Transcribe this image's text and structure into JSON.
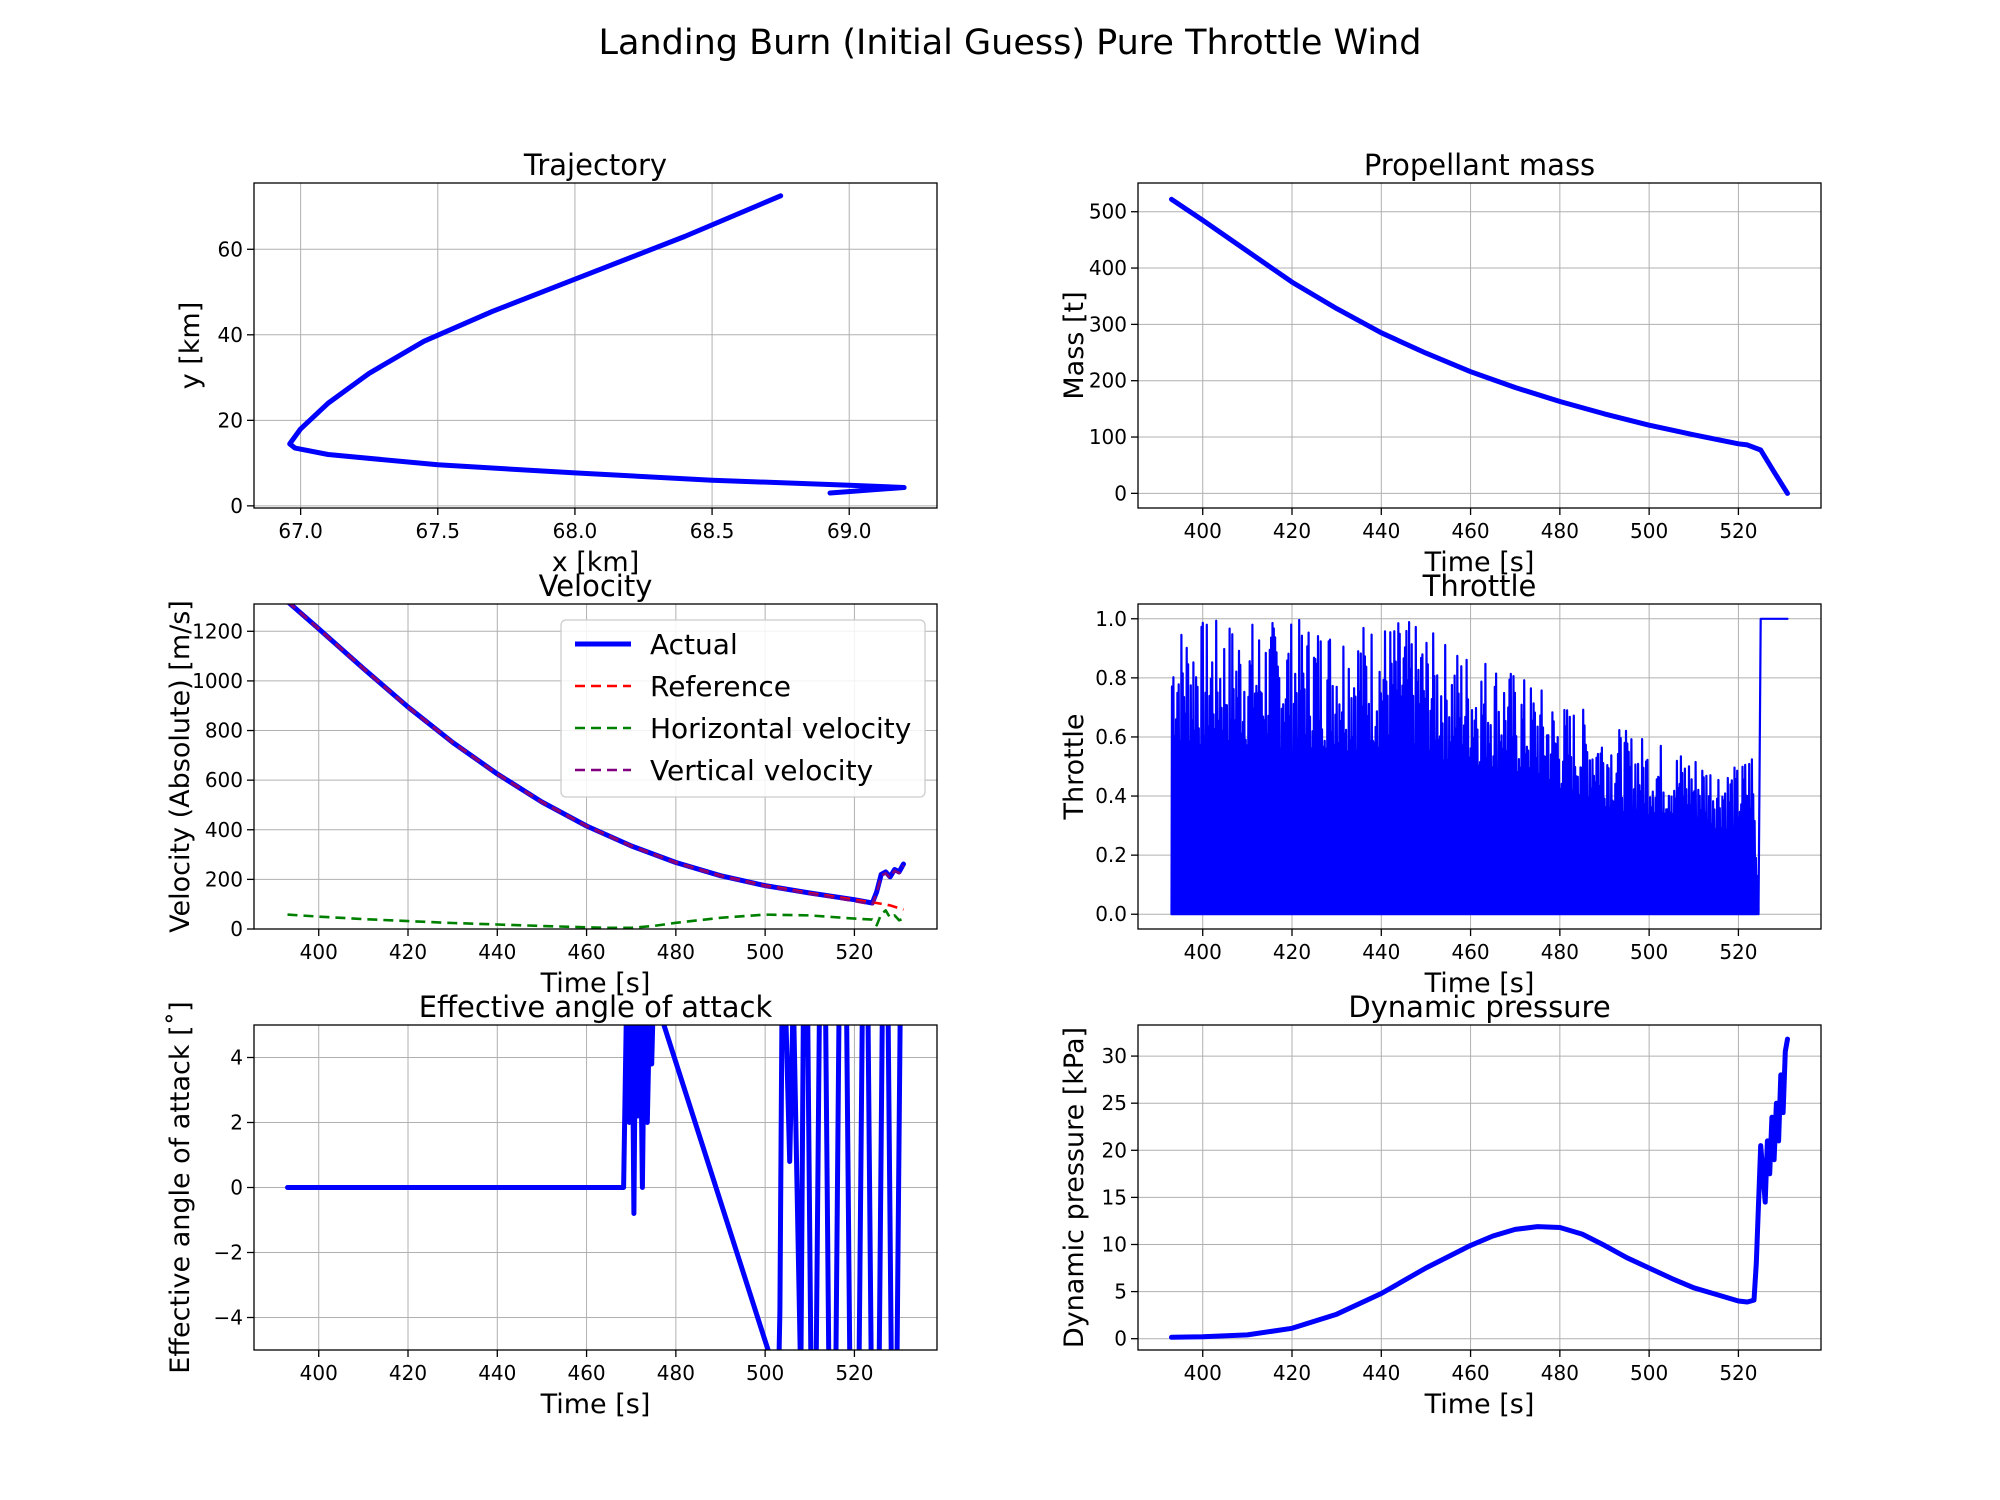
{
  "suptitle": "Landing Burn (Initial Guess) Pure Throttle Wind",
  "colors": {
    "actual": "#0000ff",
    "reference": "#ff0000",
    "horizontal": "#008000",
    "vertical": "#800080",
    "grid": "#b0b0b0"
  },
  "chart_data": [
    {
      "id": "trajectory",
      "type": "line",
      "title": "Trajectory",
      "xlabel": "x [km]",
      "ylabel": "y [km]",
      "xlim": [
        66.83,
        69.32
      ],
      "ylim": [
        -0.5,
        75.5
      ],
      "xticks": [
        67.0,
        67.5,
        68.0,
        68.5,
        69.0
      ],
      "xtick_labels": [
        "67.0",
        "67.5",
        "68.0",
        "68.5",
        "69.0"
      ],
      "yticks": [
        0,
        20,
        40,
        60
      ],
      "ytick_labels": [
        "0",
        "20",
        "40",
        "60"
      ],
      "grid": true,
      "series": [
        {
          "name": "Actual",
          "color": "#0000ff",
          "x": [
            68.75,
            68.4,
            68.0,
            67.7,
            67.45,
            67.25,
            67.1,
            67.0,
            66.96,
            66.98,
            67.1,
            67.5,
            68.0,
            68.5,
            69.0,
            69.2,
            68.93
          ],
          "y": [
            72.5,
            63,
            53,
            45.5,
            38.5,
            31,
            24,
            18,
            14.5,
            13.5,
            12,
            9.6,
            7.7,
            6.0,
            4.8,
            4.3,
            3.0
          ]
        }
      ]
    },
    {
      "id": "propellant_mass",
      "type": "line",
      "title": "Propellant mass",
      "xlabel": "Time [s]",
      "ylabel": "Mass [t]",
      "xlim": [
        385.5,
        538.5
      ],
      "ylim": [
        -26,
        551
      ],
      "xticks": [
        400,
        420,
        440,
        460,
        480,
        500,
        520
      ],
      "xtick_labels": [
        "400",
        "420",
        "440",
        "460",
        "480",
        "500",
        "520"
      ],
      "yticks": [
        0,
        100,
        200,
        300,
        400,
        500
      ],
      "ytick_labels": [
        "0",
        "100",
        "200",
        "300",
        "400",
        "500"
      ],
      "grid": true,
      "series": [
        {
          "name": "Actual",
          "color": "#0000ff",
          "x": [
            393,
            400,
            410,
            420,
            430,
            440,
            450,
            460,
            470,
            480,
            490,
            500,
            510,
            520,
            522,
            525,
            528,
            531
          ],
          "y": [
            522,
            485,
            430,
            375,
            328,
            285,
            249,
            216,
            188,
            163,
            141,
            121,
            104,
            88,
            86,
            77,
            38,
            0
          ]
        }
      ]
    },
    {
      "id": "velocity",
      "type": "line",
      "title": "Velocity",
      "xlabel": "Time [s]",
      "ylabel": "Velocity (Absolute) [m/s]",
      "xlim": [
        385.5,
        538.5
      ],
      "ylim": [
        0,
        1310
      ],
      "xticks": [
        400,
        420,
        440,
        460,
        480,
        500,
        520
      ],
      "xtick_labels": [
        "400",
        "420",
        "440",
        "460",
        "480",
        "500",
        "520"
      ],
      "yticks": [
        0,
        200,
        400,
        600,
        800,
        1000,
        1200
      ],
      "ytick_labels": [
        "0",
        "200",
        "400",
        "600",
        "800",
        "1000",
        "1200"
      ],
      "grid": true,
      "legend": "top-right",
      "series": [
        {
          "name": "Actual",
          "color": "#0000ff",
          "style": "solid",
          "x": [
            393,
            400,
            410,
            420,
            430,
            440,
            450,
            460,
            470,
            480,
            490,
            500,
            510,
            520,
            524,
            525,
            526,
            527,
            528,
            529,
            530,
            531
          ],
          "y": [
            1320,
            1210,
            1050,
            895,
            752,
            625,
            512,
            415,
            335,
            268,
            215,
            175,
            145,
            118,
            105,
            150,
            220,
            230,
            210,
            240,
            230,
            262
          ]
        },
        {
          "name": "Reference",
          "color": "#ff0000",
          "style": "dashed",
          "x": [
            393,
            400,
            410,
            420,
            430,
            440,
            450,
            460,
            470,
            480,
            490,
            500,
            510,
            520,
            525,
            528,
            531
          ],
          "y": [
            1320,
            1210,
            1050,
            895,
            752,
            625,
            512,
            415,
            335,
            268,
            215,
            175,
            145,
            118,
            105,
            95,
            78
          ]
        },
        {
          "name": "Horizontal velocity",
          "color": "#008000",
          "style": "dashed",
          "x": [
            393,
            400,
            410,
            420,
            430,
            440,
            450,
            460,
            465,
            470,
            475,
            480,
            490,
            500,
            510,
            520,
            524,
            525,
            526,
            527,
            528,
            529,
            530,
            531
          ],
          "y": [
            58,
            50,
            40,
            32,
            24,
            18,
            12,
            7,
            5,
            5,
            12,
            25,
            45,
            58,
            55,
            42,
            38,
            15,
            60,
            75,
            45,
            55,
            35,
            42
          ]
        },
        {
          "name": "Vertical velocity",
          "color": "#800080",
          "style": "dashed",
          "x": [
            393,
            400,
            410,
            420,
            430,
            440,
            450,
            460,
            470,
            480,
            490,
            500,
            510,
            520,
            524,
            525,
            526,
            527,
            528,
            529,
            530,
            531
          ],
          "y": [
            1320,
            1208,
            1048,
            893,
            750,
            623,
            510,
            413,
            333,
            266,
            213,
            172,
            142,
            112,
            100,
            145,
            215,
            225,
            205,
            235,
            225,
            255
          ]
        }
      ]
    },
    {
      "id": "throttle",
      "type": "line",
      "title": "Throttle",
      "xlabel": "Time [s]",
      "ylabel": "Throttle",
      "xlim": [
        385.5,
        538.5
      ],
      "ylim": [
        -0.05,
        1.05
      ],
      "xticks": [
        400,
        420,
        440,
        460,
        480,
        500,
        520
      ],
      "xtick_labels": [
        "400",
        "420",
        "440",
        "460",
        "480",
        "500",
        "520"
      ],
      "yticks": [
        0.0,
        0.2,
        0.4,
        0.6,
        0.8,
        1.0
      ],
      "ytick_labels": [
        "0.0",
        "0.2",
        "0.4",
        "0.6",
        "0.8",
        "1.0"
      ],
      "grid": true,
      "series": [
        {
          "name": "Actual",
          "color": "#0000ff",
          "style": "oscillating",
          "x": [
            393,
            395,
            400,
            405,
            410,
            415,
            420,
            425,
            430,
            435,
            440,
            445,
            450,
            455,
            460,
            465,
            470,
            475,
            480,
            485,
            490,
            495,
            500,
            505,
            510,
            515,
            520,
            523,
            524.5,
            525,
            526,
            528,
            530,
            531
          ],
          "y": [
            1.0,
            1.0,
            1.0,
            1.0,
            1.0,
            1.0,
            1.0,
            1.0,
            1.0,
            1.0,
            1.0,
            1.0,
            0.97,
            0.92,
            0.9,
            0.88,
            0.82,
            0.78,
            0.72,
            0.7,
            0.66,
            0.62,
            0.6,
            0.57,
            0.55,
            0.52,
            0.5,
            0.58,
            0.0,
            1.0,
            1.0,
            1.0,
            1.0,
            1.0
          ]
        }
      ]
    },
    {
      "id": "angle_of_attack",
      "type": "line",
      "title": "Effective angle of attack",
      "xlabel": "Time [s]",
      "ylabel": "Effective angle of attack [˚]",
      "xlim": [
        385.5,
        538.5
      ],
      "ylim": [
        -5,
        5
      ],
      "xticks": [
        400,
        420,
        440,
        460,
        480,
        500,
        520
      ],
      "xtick_labels": [
        "400",
        "420",
        "440",
        "460",
        "480",
        "500",
        "520"
      ],
      "yticks": [
        -4,
        -2,
        0,
        2,
        4
      ],
      "ytick_labels": [
        "−4",
        "−2",
        "0",
        "2",
        "4"
      ],
      "grid": true,
      "series": [
        {
          "name": "Actual",
          "color": "#0000ff",
          "x": [
            393,
            468,
            468.3,
            469,
            469.6,
            470.2,
            470.6,
            471,
            471.5,
            472,
            472.5,
            473,
            473.6,
            474.2,
            474.6,
            475,
            503,
            503.3,
            503.8,
            504.5,
            505.5,
            506.3,
            508,
            508.6,
            509.5,
            510.3,
            511.4,
            512.2,
            513.5,
            514.3,
            515.8,
            516.6,
            518.2,
            519,
            521,
            521.8,
            523,
            523.8,
            525.5,
            526.3,
            527.5,
            528.3,
            529.5,
            530.3,
            531
          ],
          "y": [
            0,
            0,
            0,
            6,
            2,
            6,
            -0.8,
            6,
            2.2,
            6,
            0,
            6,
            2.0,
            6,
            3.8,
            6,
            -6,
            -3.8,
            6,
            6,
            0.8,
            6,
            -6,
            6,
            6,
            -6,
            -6,
            6,
            6,
            -6,
            -6,
            6,
            6,
            -6,
            -6,
            6,
            6,
            -6,
            -6,
            6,
            6,
            -6,
            -6,
            6,
            6
          ]
        }
      ]
    },
    {
      "id": "dynamic_pressure",
      "type": "line",
      "title": "Dynamic pressure",
      "xlabel": "Time [s]",
      "ylabel": "Dynamic pressure [kPa]",
      "xlim": [
        385.5,
        538.5
      ],
      "ylim": [
        -1.2,
        33.3
      ],
      "xticks": [
        400,
        420,
        440,
        460,
        480,
        500,
        520
      ],
      "xtick_labels": [
        "400",
        "420",
        "440",
        "460",
        "480",
        "500",
        "520"
      ],
      "yticks": [
        0,
        5,
        10,
        15,
        20,
        25,
        30
      ],
      "ytick_labels": [
        "0",
        "5",
        "10",
        "15",
        "20",
        "25",
        "30"
      ],
      "grid": true,
      "series": [
        {
          "name": "Actual",
          "color": "#0000ff",
          "x": [
            393,
            400,
            410,
            420,
            430,
            440,
            450,
            460,
            465,
            470,
            475,
            480,
            485,
            490,
            495,
            500,
            505,
            510,
            515,
            520,
            522,
            523.5,
            524,
            525,
            526,
            526.5,
            527,
            527.5,
            528,
            528.5,
            529,
            529.5,
            530,
            530.5,
            531
          ],
          "y": [
            0.15,
            0.2,
            0.4,
            1.1,
            2.6,
            4.8,
            7.5,
            9.9,
            10.9,
            11.6,
            11.9,
            11.8,
            11.1,
            9.9,
            8.6,
            7.5,
            6.4,
            5.4,
            4.7,
            4.0,
            3.9,
            4.1,
            8.0,
            20.5,
            14.5,
            21.0,
            17.5,
            23.5,
            19.0,
            25.0,
            21.0,
            28.0,
            24.0,
            30.5,
            31.8
          ]
        }
      ]
    }
  ]
}
